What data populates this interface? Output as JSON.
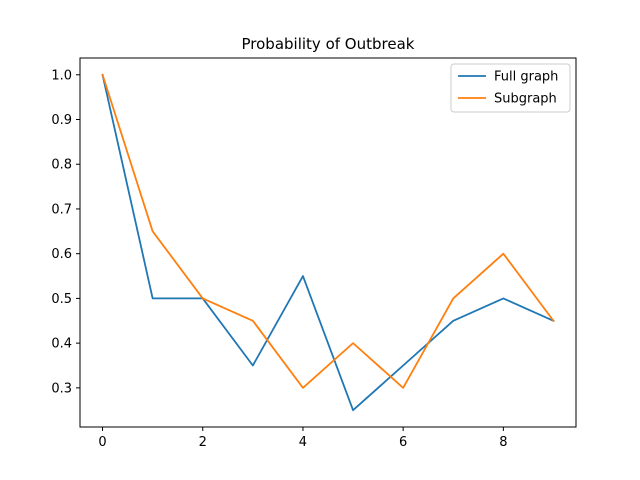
{
  "chart_data": {
    "type": "line",
    "title": "Probability of Outbreak",
    "xlabel": "",
    "ylabel": "",
    "x": [
      0,
      1,
      2,
      3,
      4,
      5,
      6,
      7,
      8,
      9
    ],
    "xlim": [
      -0.45,
      9.45
    ],
    "ylim": [
      0.2125,
      1.0375
    ],
    "xticks": [
      0,
      2,
      4,
      6,
      8
    ],
    "yticks": [
      0.3,
      0.4,
      0.5,
      0.6,
      0.7,
      0.8,
      0.9,
      1.0
    ],
    "xtick_labels": [
      "0",
      "2",
      "4",
      "6",
      "8"
    ],
    "ytick_labels": [
      "0.3",
      "0.4",
      "0.5",
      "0.6",
      "0.7",
      "0.8",
      "0.9",
      "1.0"
    ],
    "grid": false,
    "legend_position": "top-right",
    "series": [
      {
        "name": "Full graph",
        "color": "#1f77b4",
        "values": [
          1.0,
          0.5,
          0.5,
          0.35,
          0.55,
          0.25,
          0.35,
          0.45,
          0.5,
          0.45
        ]
      },
      {
        "name": "Subgraph",
        "color": "#ff7f0e",
        "values": [
          1.0,
          0.65,
          0.5,
          0.45,
          0.3,
          0.4,
          0.3,
          0.5,
          0.6,
          0.45
        ]
      }
    ]
  }
}
